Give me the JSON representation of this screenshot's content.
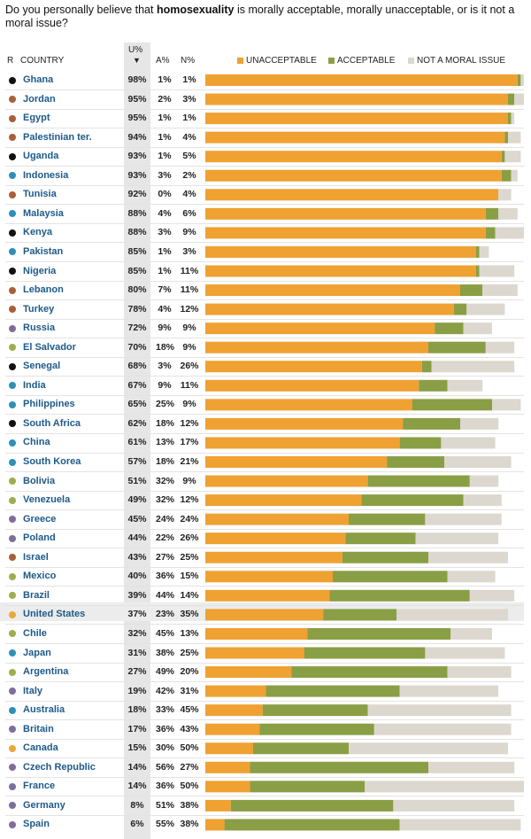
{
  "question": {
    "before": "Do you personally believe that ",
    "bold": "homosexuality",
    "after": " is morally acceptable, morally unacceptable, or is it not a moral issue?"
  },
  "headers": {
    "r": "R",
    "country": "COUNTRY",
    "u": "U%",
    "a": "A%",
    "n": "N%",
    "sort_arrow": "▼"
  },
  "colors": {
    "unacceptable": "#EFA132",
    "acceptable": "#8A9E45",
    "not_moral": "#DCD8CF",
    "region_africa": "#111111",
    "region_mideast": "#A6603A",
    "region_asia": "#2E8FB8",
    "region_latam": "#9AAF4F",
    "region_europe": "#7E6E9A",
    "region_northamerica": "#E8A83A"
  },
  "chart_data": {
    "type": "bar",
    "stacked": true,
    "orientation": "horizontal",
    "title": "",
    "xlim": [
      0,
      100
    ],
    "legend": [
      {
        "label": "UNACCEPTABLE",
        "color": "#EFA132"
      },
      {
        "label": "ACCEPTABLE",
        "color": "#8A9E45"
      },
      {
        "label": "NOT A MORAL ISSUE",
        "color": "#DCD8CF"
      }
    ],
    "legend_position": "top",
    "rows": [
      {
        "country": "Ghana",
        "region": "africa",
        "u": 98,
        "a": 1,
        "n": 1,
        "u_label": "98%",
        "a_label": "1%",
        "n_label": "1%"
      },
      {
        "country": "Jordan",
        "region": "mideast",
        "u": 95,
        "a": 2,
        "n": 3,
        "u_label": "95%",
        "a_label": "2%",
        "n_label": "3%"
      },
      {
        "country": "Egypt",
        "region": "mideast",
        "u": 95,
        "a": 1,
        "n": 1,
        "u_label": "95%",
        "a_label": "1%",
        "n_label": "1%"
      },
      {
        "country": "Palestinian ter.",
        "region": "mideast",
        "u": 94,
        "a": 1,
        "n": 4,
        "u_label": "94%",
        "a_label": "1%",
        "n_label": "4%"
      },
      {
        "country": "Uganda",
        "region": "africa",
        "u": 93,
        "a": 1,
        "n": 5,
        "u_label": "93%",
        "a_label": "1%",
        "n_label": "5%"
      },
      {
        "country": "Indonesia",
        "region": "asia",
        "u": 93,
        "a": 3,
        "n": 2,
        "u_label": "93%",
        "a_label": "3%",
        "n_label": "2%"
      },
      {
        "country": "Tunisia",
        "region": "mideast",
        "u": 92,
        "a": 0,
        "n": 4,
        "u_label": "92%",
        "a_label": "0%",
        "n_label": "4%"
      },
      {
        "country": "Malaysia",
        "region": "asia",
        "u": 88,
        "a": 4,
        "n": 6,
        "u_label": "88%",
        "a_label": "4%",
        "n_label": "6%"
      },
      {
        "country": "Kenya",
        "region": "africa",
        "u": 88,
        "a": 3,
        "n": 9,
        "u_label": "88%",
        "a_label": "3%",
        "n_label": "9%"
      },
      {
        "country": "Pakistan",
        "region": "asia",
        "u": 85,
        "a": 1,
        "n": 3,
        "u_label": "85%",
        "a_label": "1%",
        "n_label": "3%"
      },
      {
        "country": "Nigeria",
        "region": "africa",
        "u": 85,
        "a": 1,
        "n": 11,
        "u_label": "85%",
        "a_label": "1%",
        "n_label": "11%"
      },
      {
        "country": "Lebanon",
        "region": "mideast",
        "u": 80,
        "a": 7,
        "n": 11,
        "u_label": "80%",
        "a_label": "7%",
        "n_label": "11%"
      },
      {
        "country": "Turkey",
        "region": "mideast",
        "u": 78,
        "a": 4,
        "n": 12,
        "u_label": "78%",
        "a_label": "4%",
        "n_label": "12%"
      },
      {
        "country": "Russia",
        "region": "europe",
        "u": 72,
        "a": 9,
        "n": 9,
        "u_label": "72%",
        "a_label": "9%",
        "n_label": "9%"
      },
      {
        "country": "El Salvador",
        "region": "latam",
        "u": 70,
        "a": 18,
        "n": 9,
        "u_label": "70%",
        "a_label": "18%",
        "n_label": "9%"
      },
      {
        "country": "Senegal",
        "region": "africa",
        "u": 68,
        "a": 3,
        "n": 26,
        "u_label": "68%",
        "a_label": "3%",
        "n_label": "26%"
      },
      {
        "country": "India",
        "region": "asia",
        "u": 67,
        "a": 9,
        "n": 11,
        "u_label": "67%",
        "a_label": "9%",
        "n_label": "11%"
      },
      {
        "country": "Philippines",
        "region": "asia",
        "u": 65,
        "a": 25,
        "n": 9,
        "u_label": "65%",
        "a_label": "25%",
        "n_label": "9%"
      },
      {
        "country": "South Africa",
        "region": "africa",
        "u": 62,
        "a": 18,
        "n": 12,
        "u_label": "62%",
        "a_label": "18%",
        "n_label": "12%"
      },
      {
        "country": "China",
        "region": "asia",
        "u": 61,
        "a": 13,
        "n": 17,
        "u_label": "61%",
        "a_label": "13%",
        "n_label": "17%"
      },
      {
        "country": "South Korea",
        "region": "asia",
        "u": 57,
        "a": 18,
        "n": 21,
        "u_label": "57%",
        "a_label": "18%",
        "n_label": "21%"
      },
      {
        "country": "Bolivia",
        "region": "latam",
        "u": 51,
        "a": 32,
        "n": 9,
        "u_label": "51%",
        "a_label": "32%",
        "n_label": "9%"
      },
      {
        "country": "Venezuela",
        "region": "latam",
        "u": 49,
        "a": 32,
        "n": 12,
        "u_label": "49%",
        "a_label": "32%",
        "n_label": "12%"
      },
      {
        "country": "Greece",
        "region": "europe",
        "u": 45,
        "a": 24,
        "n": 24,
        "u_label": "45%",
        "a_label": "24%",
        "n_label": "24%"
      },
      {
        "country": "Poland",
        "region": "europe",
        "u": 44,
        "a": 22,
        "n": 26,
        "u_label": "44%",
        "a_label": "22%",
        "n_label": "26%"
      },
      {
        "country": "Israel",
        "region": "mideast",
        "u": 43,
        "a": 27,
        "n": 25,
        "u_label": "43%",
        "a_label": "27%",
        "n_label": "25%"
      },
      {
        "country": "Mexico",
        "region": "latam",
        "u": 40,
        "a": 36,
        "n": 15,
        "u_label": "40%",
        "a_label": "36%",
        "n_label": "15%"
      },
      {
        "country": "Brazil",
        "region": "latam",
        "u": 39,
        "a": 44,
        "n": 14,
        "u_label": "39%",
        "a_label": "44%",
        "n_label": "14%"
      },
      {
        "country": "United States",
        "region": "northamerica",
        "u": 37,
        "a": 23,
        "n": 35,
        "u_label": "37%",
        "a_label": "23%",
        "n_label": "35%",
        "highlight": true
      },
      {
        "country": "Chile",
        "region": "latam",
        "u": 32,
        "a": 45,
        "n": 13,
        "u_label": "32%",
        "a_label": "45%",
        "n_label": "13%"
      },
      {
        "country": "Japan",
        "region": "asia",
        "u": 31,
        "a": 38,
        "n": 25,
        "u_label": "31%",
        "a_label": "38%",
        "n_label": "25%"
      },
      {
        "country": "Argentina",
        "region": "latam",
        "u": 27,
        "a": 49,
        "n": 20,
        "u_label": "27%",
        "a_label": "49%",
        "n_label": "20%"
      },
      {
        "country": "Italy",
        "region": "europe",
        "u": 19,
        "a": 42,
        "n": 31,
        "u_label": "19%",
        "a_label": "42%",
        "n_label": "31%"
      },
      {
        "country": "Australia",
        "region": "asia",
        "u": 18,
        "a": 33,
        "n": 45,
        "u_label": "18%",
        "a_label": "33%",
        "n_label": "45%"
      },
      {
        "country": "Britain",
        "region": "europe",
        "u": 17,
        "a": 36,
        "n": 43,
        "u_label": "17%",
        "a_label": "36%",
        "n_label": "43%"
      },
      {
        "country": "Canada",
        "region": "northamerica",
        "u": 15,
        "a": 30,
        "n": 50,
        "u_label": "15%",
        "a_label": "30%",
        "n_label": "50%"
      },
      {
        "country": "Czech Republic",
        "region": "europe",
        "u": 14,
        "a": 56,
        "n": 27,
        "u_label": "14%",
        "a_label": "56%",
        "n_label": "27%"
      },
      {
        "country": "France",
        "region": "europe",
        "u": 14,
        "a": 36,
        "n": 50,
        "u_label": "14%",
        "a_label": "36%",
        "n_label": "50%"
      },
      {
        "country": "Germany",
        "region": "europe",
        "u": 8,
        "a": 51,
        "n": 38,
        "u_label": "8%",
        "a_label": "51%",
        "n_label": "38%"
      },
      {
        "country": "Spain",
        "region": "europe",
        "u": 6,
        "a": 55,
        "n": 38,
        "u_label": "6%",
        "a_label": "55%",
        "n_label": "38%"
      }
    ]
  }
}
